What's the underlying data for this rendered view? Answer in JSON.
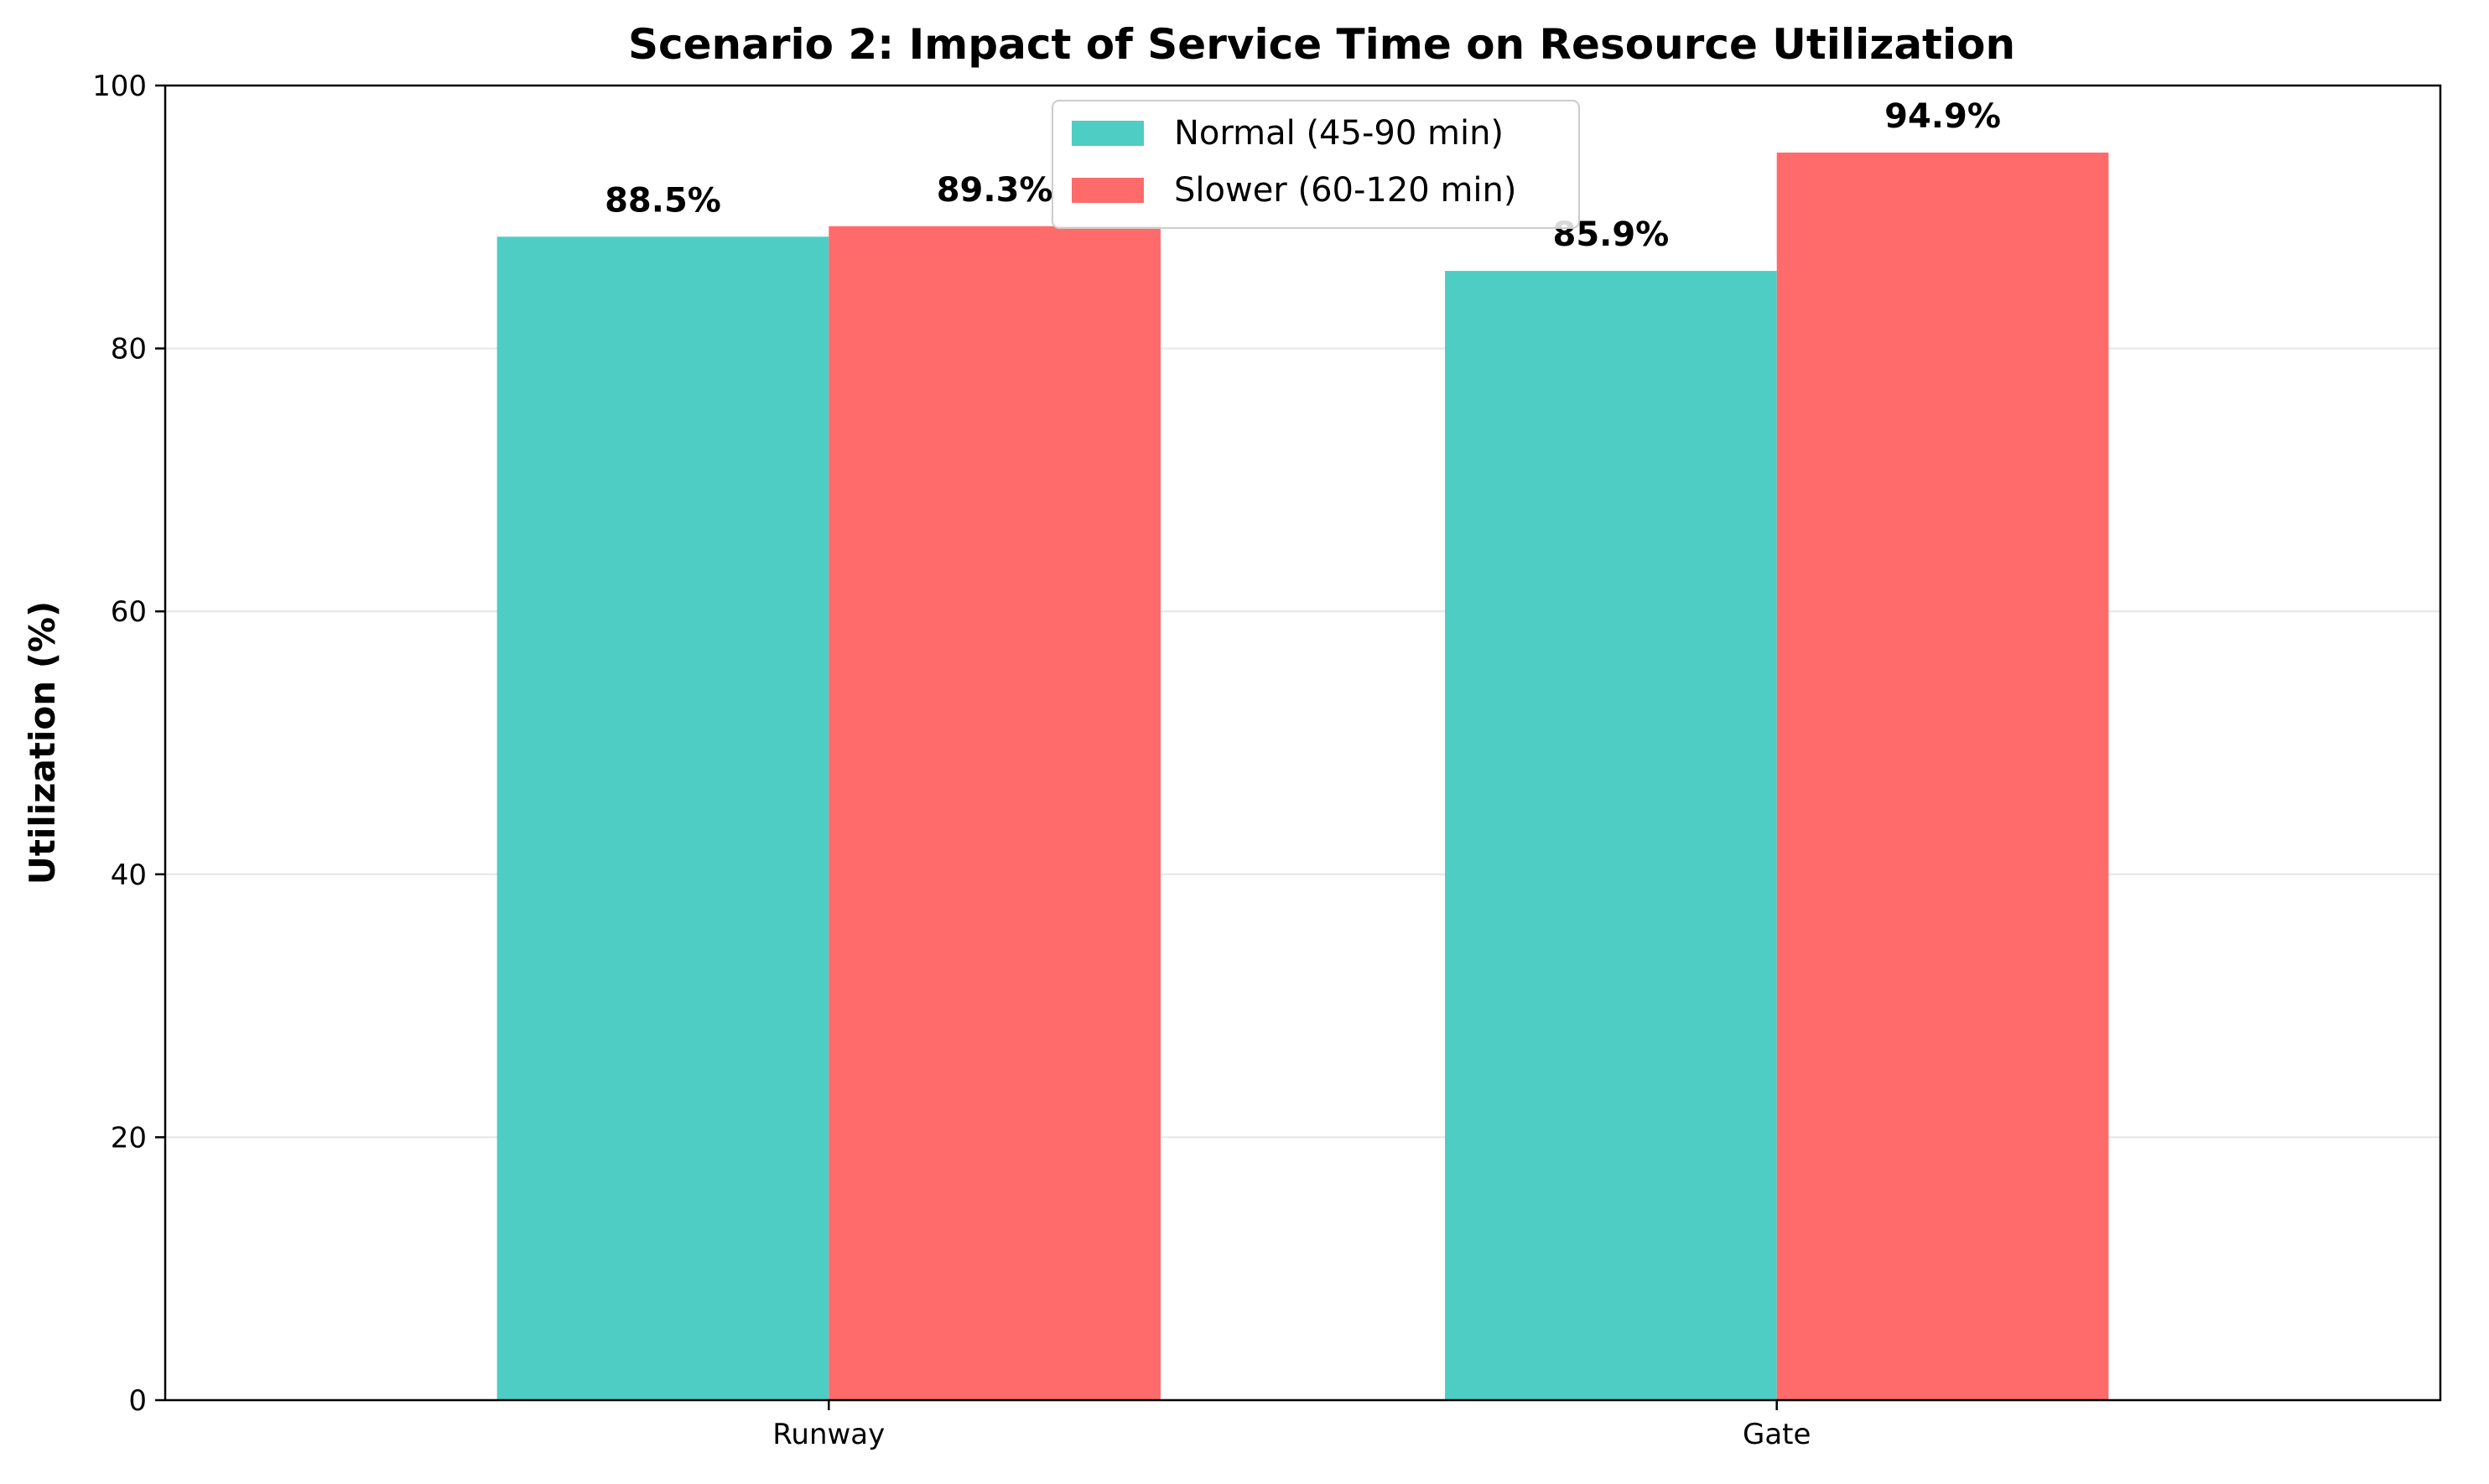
{
  "chart_data": {
    "type": "bar",
    "title": "Scenario 2: Impact of Service Time on Resource Utilization",
    "xlabel": "",
    "ylabel": "Utilization (%)",
    "categories": [
      "Runway",
      "Gate"
    ],
    "series": [
      {
        "name": "Normal (45-90 min)",
        "values": [
          88.5,
          85.9
        ],
        "labels": [
          "88.5%",
          "85.9%"
        ],
        "color": "#4ECDC4"
      },
      {
        "name": "Slower (60-120 min)",
        "values": [
          89.3,
          94.9
        ],
        "labels": [
          "89.3%",
          "94.9%"
        ],
        "color": "#FF6B6B"
      }
    ],
    "ylim": [
      0,
      100
    ],
    "yticks": [
      0,
      20,
      40,
      60,
      80,
      100
    ],
    "grid": "horizontal",
    "legend": "top-center"
  }
}
